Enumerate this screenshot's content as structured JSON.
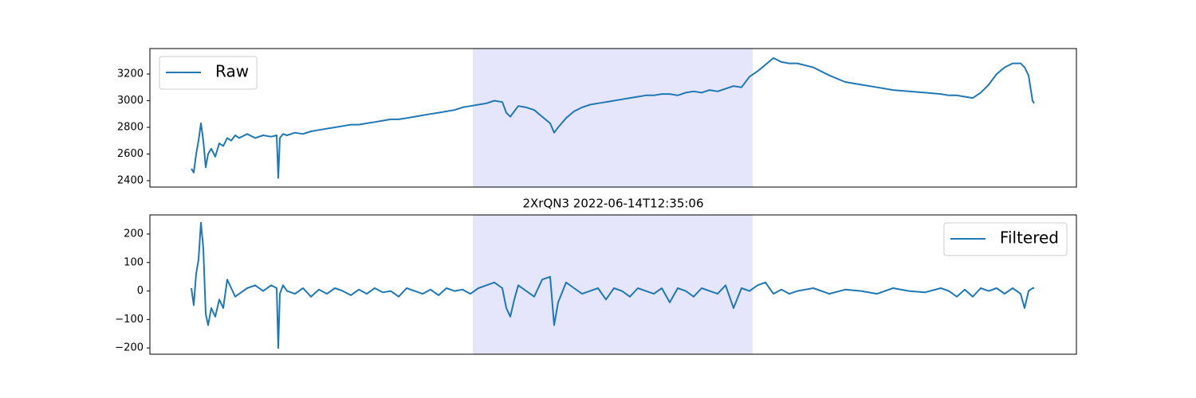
{
  "chart_data": [
    {
      "type": "line",
      "legend": "upper left",
      "ylim": [
        2352,
        3391
      ],
      "xlim": [
        -52,
        1110
      ],
      "yticks": [
        2400,
        2600,
        2800,
        3000,
        3200
      ],
      "highlight": {
        "x": [
          353,
          704
        ],
        "color": "#e5e5fc"
      },
      "x": [
        0,
        3,
        6,
        9,
        12,
        15,
        18,
        21,
        25,
        30,
        35,
        40,
        45,
        50,
        55,
        60,
        70,
        80,
        90,
        100,
        107,
        109,
        111,
        115,
        120,
        130,
        140,
        150,
        160,
        170,
        180,
        190,
        200,
        210,
        220,
        230,
        240,
        250,
        260,
        270,
        280,
        290,
        300,
        310,
        320,
        330,
        340,
        350,
        360,
        370,
        380,
        390,
        395,
        400,
        405,
        410,
        420,
        430,
        440,
        450,
        455,
        460,
        470,
        480,
        490,
        500,
        510,
        520,
        530,
        540,
        550,
        560,
        570,
        580,
        590,
        600,
        610,
        620,
        630,
        640,
        650,
        660,
        670,
        680,
        690,
        700,
        710,
        720,
        730,
        740,
        750,
        760,
        780,
        800,
        820,
        840,
        860,
        880,
        900,
        920,
        940,
        950,
        960,
        970,
        980,
        990,
        1000,
        1010,
        1020,
        1030,
        1040,
        1045,
        1050,
        1055,
        1057
      ],
      "series": [
        {
          "name": "Raw",
          "color": "#1f77b4",
          "values": [
            2490,
            2460,
            2600,
            2700,
            2830,
            2700,
            2500,
            2600,
            2640,
            2580,
            2680,
            2660,
            2720,
            2700,
            2740,
            2720,
            2750,
            2720,
            2740,
            2730,
            2740,
            2420,
            2720,
            2750,
            2740,
            2760,
            2750,
            2770,
            2780,
            2790,
            2800,
            2810,
            2820,
            2820,
            2830,
            2840,
            2850,
            2860,
            2860,
            2870,
            2880,
            2890,
            2900,
            2910,
            2920,
            2930,
            2950,
            2960,
            2970,
            2980,
            3000,
            2990,
            2910,
            2880,
            2920,
            2960,
            2950,
            2930,
            2880,
            2830,
            2760,
            2800,
            2870,
            2920,
            2950,
            2970,
            2980,
            2990,
            3000,
            3010,
            3020,
            3030,
            3040,
            3040,
            3050,
            3050,
            3040,
            3060,
            3070,
            3060,
            3080,
            3070,
            3090,
            3110,
            3100,
            3180,
            3220,
            3270,
            3320,
            3290,
            3280,
            3280,
            3250,
            3190,
            3140,
            3120,
            3100,
            3080,
            3070,
            3060,
            3050,
            3040,
            3040,
            3030,
            3020,
            3060,
            3120,
            3200,
            3250,
            3280,
            3280,
            3250,
            3190,
            3000,
            2980
          ]
        }
      ]
    },
    {
      "type": "line",
      "legend": "upper right",
      "title": "2XrQN3 2022-06-14T12:35:06",
      "ylim": [
        -222,
        267
      ],
      "xlim": [
        -52,
        1110
      ],
      "yticks": [
        {
          "value": -200,
          "label": "−200"
        },
        {
          "value": -100,
          "label": "−100"
        },
        0,
        100,
        200
      ],
      "highlight": {
        "x": [
          353,
          704
        ],
        "color": "#e5e5fc"
      },
      "x": [
        0,
        3,
        6,
        9,
        12,
        15,
        18,
        21,
        25,
        30,
        35,
        40,
        45,
        50,
        55,
        60,
        70,
        80,
        90,
        100,
        107,
        109,
        111,
        115,
        120,
        130,
        140,
        150,
        160,
        170,
        180,
        190,
        200,
        210,
        220,
        230,
        240,
        250,
        260,
        270,
        280,
        290,
        300,
        310,
        320,
        330,
        340,
        350,
        360,
        370,
        380,
        390,
        395,
        400,
        405,
        410,
        420,
        430,
        440,
        450,
        455,
        460,
        470,
        480,
        490,
        500,
        510,
        520,
        530,
        540,
        550,
        560,
        570,
        580,
        590,
        600,
        610,
        620,
        630,
        640,
        650,
        660,
        670,
        680,
        690,
        700,
        710,
        720,
        730,
        740,
        750,
        760,
        780,
        800,
        820,
        840,
        860,
        880,
        900,
        920,
        940,
        950,
        960,
        970,
        980,
        990,
        1000,
        1010,
        1020,
        1030,
        1040,
        1045,
        1050,
        1055,
        1057
      ],
      "series": [
        {
          "name": "Filtered",
          "color": "#1f77b4",
          "values": [
            10,
            -50,
            60,
            110,
            240,
            150,
            -80,
            -120,
            -60,
            -90,
            -30,
            -60,
            40,
            10,
            -20,
            -10,
            10,
            20,
            0,
            20,
            10,
            -200,
            -10,
            20,
            0,
            -10,
            10,
            -20,
            5,
            -10,
            10,
            0,
            -15,
            5,
            -10,
            10,
            -5,
            0,
            -20,
            10,
            0,
            -10,
            5,
            -15,
            10,
            0,
            5,
            -10,
            10,
            20,
            30,
            10,
            -60,
            -90,
            -30,
            20,
            0,
            -20,
            40,
            50,
            -120,
            -40,
            30,
            10,
            -10,
            0,
            10,
            -30,
            10,
            0,
            -20,
            10,
            0,
            -10,
            10,
            -40,
            10,
            0,
            -20,
            10,
            0,
            -10,
            20,
            -60,
            10,
            0,
            20,
            30,
            -10,
            5,
            -10,
            0,
            10,
            -10,
            5,
            0,
            -10,
            10,
            0,
            -5,
            10,
            0,
            -20,
            5,
            -20,
            10,
            0,
            10,
            -10,
            10,
            -10,
            -60,
            0,
            10,
            10
          ]
        }
      ]
    }
  ]
}
